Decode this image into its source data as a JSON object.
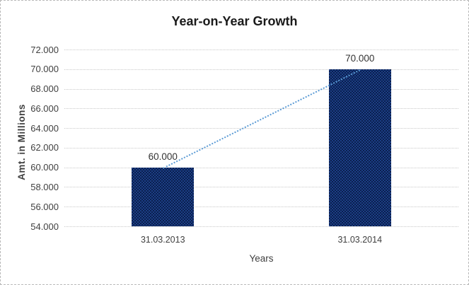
{
  "chart_data": {
    "type": "bar",
    "title": "Year-on-Year Growth",
    "xlabel": "Years",
    "ylabel": "Amt. in Millions",
    "categories": [
      "31.03.2013",
      "31.03.2014"
    ],
    "values": [
      60000,
      70000
    ],
    "value_labels": [
      "60.000",
      "70.000"
    ],
    "ylim": [
      54000,
      72000
    ],
    "ytick_interval": 2000,
    "ytick_labels": [
      "72.000",
      "70.000",
      "68.000",
      "66.000",
      "64.000",
      "62.000",
      "60.000",
      "58.000",
      "56.000",
      "54.000"
    ],
    "grid": "horizontal-dotted",
    "legend": "none",
    "trendline": {
      "style": "dotted",
      "color": "#5b9bd5",
      "connects": [
        "31.03.2013",
        "31.03.2014"
      ]
    },
    "colors": {
      "bar_checker_dark": "#0a1f4e",
      "bar_checker_light": "#1c3e85",
      "gridline": "#c9c9c9",
      "axis_text": "#404040",
      "title_text": "#1a1a1a",
      "frame_border": "#b9b9b9"
    }
  }
}
